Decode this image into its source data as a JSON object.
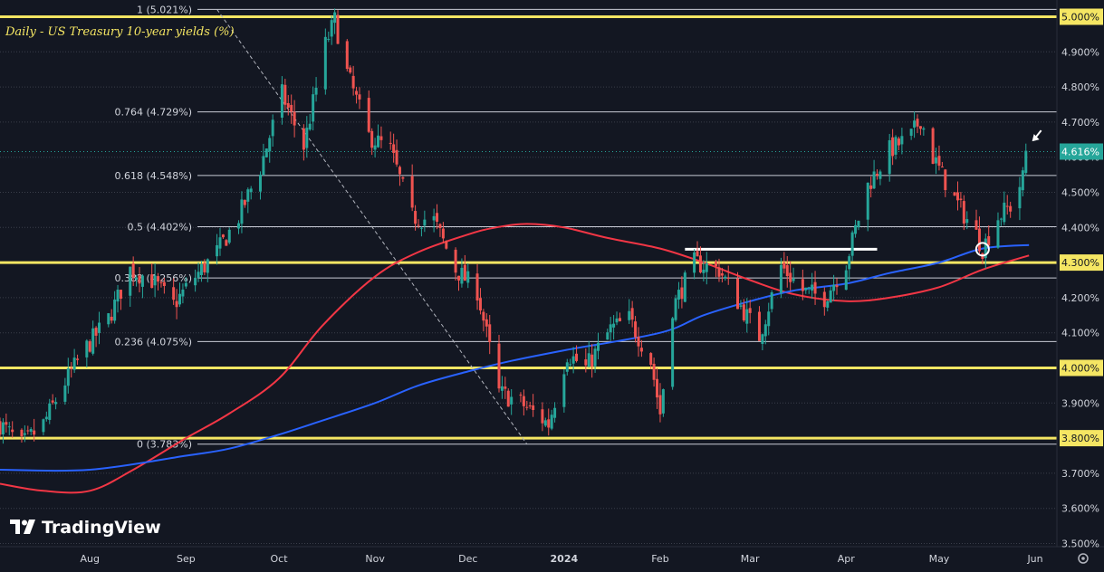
{
  "app": {
    "logo_text": "TradingView"
  },
  "chart_data": {
    "type": "candlestick",
    "title": "Daily - US Treasury 10-year yields (%)",
    "ylim": [
      3.5,
      5.05
    ],
    "y_ticks": [
      "5.000%",
      "4.900%",
      "4.800%",
      "4.700%",
      "4.600%",
      "4.500%",
      "4.400%",
      "4.300%",
      "4.200%",
      "4.100%",
      "4.000%",
      "3.900%",
      "3.800%",
      "3.700%",
      "3.600%",
      "3.500%"
    ],
    "y_tick_values": [
      5.0,
      4.9,
      4.8,
      4.7,
      4.6,
      4.5,
      4.4,
      4.3,
      4.2,
      4.1,
      4.0,
      3.9,
      3.8,
      3.7,
      3.6,
      3.5
    ],
    "highlighted_ticks": [
      5.0,
      4.3,
      4.0,
      3.8
    ],
    "x_range": [
      "2023-07-03",
      "2024-06-08"
    ],
    "x_ticks": [
      {
        "label": "Aug",
        "date": "2023-08-01"
      },
      {
        "label": "Sep",
        "date": "2023-09-01"
      },
      {
        "label": "Oct",
        "date": "2023-10-01"
      },
      {
        "label": "Nov",
        "date": "2023-11-01"
      },
      {
        "label": "Dec",
        "date": "2023-12-01"
      },
      {
        "label": "2024",
        "date": "2024-01-01"
      },
      {
        "label": "Feb",
        "date": "2024-02-01"
      },
      {
        "label": "Mar",
        "date": "2024-03-01"
      },
      {
        "label": "Apr",
        "date": "2024-04-01"
      },
      {
        "label": "May",
        "date": "2024-05-01"
      },
      {
        "label": "Jun",
        "date": "2024-06-01"
      }
    ],
    "last_price": {
      "value": 4.616,
      "label": "4.616%"
    },
    "fib_levels": [
      {
        "label": "1 (5.021%)",
        "value": 5.021
      },
      {
        "label": "0.764 (4.729%)",
        "value": 4.729
      },
      {
        "label": "0.618 (4.548%)",
        "value": 4.548
      },
      {
        "label": "0.5 (4.402%)",
        "value": 4.402
      },
      {
        "label": "0.382 (4.256%)",
        "value": 4.256
      },
      {
        "label": "0.236 (4.075%)",
        "value": 4.075
      },
      {
        "label": "0 (3.783%)",
        "value": 3.783
      }
    ],
    "key_levels": [
      5.0,
      4.3,
      4.0,
      3.8
    ],
    "close_series": {
      "dates": [
        "2023-07-03",
        "2023-07-10",
        "2023-07-17",
        "2023-07-24",
        "2023-07-31",
        "2023-08-07",
        "2023-08-14",
        "2023-08-21",
        "2023-08-28",
        "2023-09-04",
        "2023-09-11",
        "2023-09-18",
        "2023-09-25",
        "2023-10-02",
        "2023-10-09",
        "2023-10-16",
        "2023-10-19",
        "2023-10-23",
        "2023-10-30",
        "2023-11-06",
        "2023-11-13",
        "2023-11-20",
        "2023-11-27",
        "2023-12-04",
        "2023-12-11",
        "2023-12-18",
        "2023-12-27",
        "2024-01-02",
        "2024-01-08",
        "2024-01-16",
        "2024-01-22",
        "2024-01-29",
        "2024-02-01",
        "2024-02-05",
        "2024-02-12",
        "2024-02-20",
        "2024-02-26",
        "2024-03-04",
        "2024-03-11",
        "2024-03-18",
        "2024-03-25",
        "2024-04-01",
        "2024-04-08",
        "2024-04-15",
        "2024-04-22",
        "2024-04-25",
        "2024-04-29",
        "2024-05-06",
        "2024-05-13",
        "2024-05-15",
        "2024-05-20",
        "2024-05-24",
        "2024-05-28",
        "2024-05-29"
      ],
      "values": [
        3.84,
        3.78,
        3.84,
        3.96,
        4.06,
        4.14,
        4.28,
        4.25,
        4.18,
        4.26,
        4.33,
        4.43,
        4.57,
        4.78,
        4.63,
        4.92,
        4.99,
        4.84,
        4.66,
        4.62,
        4.43,
        4.42,
        4.28,
        4.22,
        3.93,
        3.9,
        3.84,
        4.04,
        4.0,
        4.11,
        4.14,
        4.02,
        3.87,
        4.17,
        4.3,
        4.28,
        4.19,
        4.09,
        4.29,
        4.22,
        4.2,
        4.3,
        4.52,
        4.62,
        4.66,
        4.71,
        4.6,
        4.48,
        4.38,
        4.34,
        4.43,
        4.46,
        4.54,
        4.616
      ]
    },
    "ma_series": [
      {
        "name": "",
        "color": "#f23645",
        "dates": [
          "2023-07-03",
          "2023-07-17",
          "2023-08-01",
          "2023-08-15",
          "2023-09-01",
          "2023-09-15",
          "2023-10-01",
          "2023-10-15",
          "2023-11-01",
          "2023-11-15",
          "2023-12-01",
          "2023-12-10",
          "2023-12-20",
          "2024-01-01",
          "2024-01-15",
          "2024-02-01",
          "2024-02-15",
          "2024-03-01",
          "2024-03-15",
          "2024-04-01",
          "2024-04-15",
          "2024-05-01",
          "2024-05-15",
          "2024-05-30"
        ],
        "values": [
          3.67,
          3.65,
          3.65,
          3.71,
          3.8,
          3.87,
          3.97,
          4.12,
          4.26,
          4.33,
          4.38,
          4.4,
          4.41,
          4.4,
          4.37,
          4.34,
          4.3,
          4.25,
          4.21,
          4.19,
          4.2,
          4.23,
          4.28,
          4.32
        ]
      },
      {
        "name": "",
        "color": "#2962ff",
        "dates": [
          "2023-07-03",
          "2023-08-01",
          "2023-09-01",
          "2023-09-15",
          "2023-10-01",
          "2023-10-15",
          "2023-11-01",
          "2023-11-15",
          "2023-12-01",
          "2023-12-15",
          "2024-01-01",
          "2024-02-01",
          "2024-02-15",
          "2024-03-01",
          "2024-03-15",
          "2024-04-01",
          "2024-04-15",
          "2024-05-01",
          "2024-05-15",
          "2024-05-30"
        ],
        "values": [
          3.71,
          3.71,
          3.75,
          3.77,
          3.81,
          3.85,
          3.9,
          3.95,
          3.99,
          4.02,
          4.05,
          4.1,
          4.15,
          4.19,
          4.22,
          4.24,
          4.27,
          4.3,
          4.34,
          4.35
        ]
      }
    ],
    "annotations": {
      "support_line": {
        "date_start": "2024-02-09",
        "date_end": "2024-04-11",
        "value": 4.338
      },
      "diagonal_trendline": {
        "date_start": "2023-09-11",
        "date_end": "2023-12-20",
        "value_start": 5.021,
        "value_end": 3.783
      },
      "circle_marker": {
        "date": "2024-05-15",
        "value": 4.338
      },
      "arrow_marker": {
        "date": "2024-05-31",
        "value": 4.64
      }
    }
  }
}
